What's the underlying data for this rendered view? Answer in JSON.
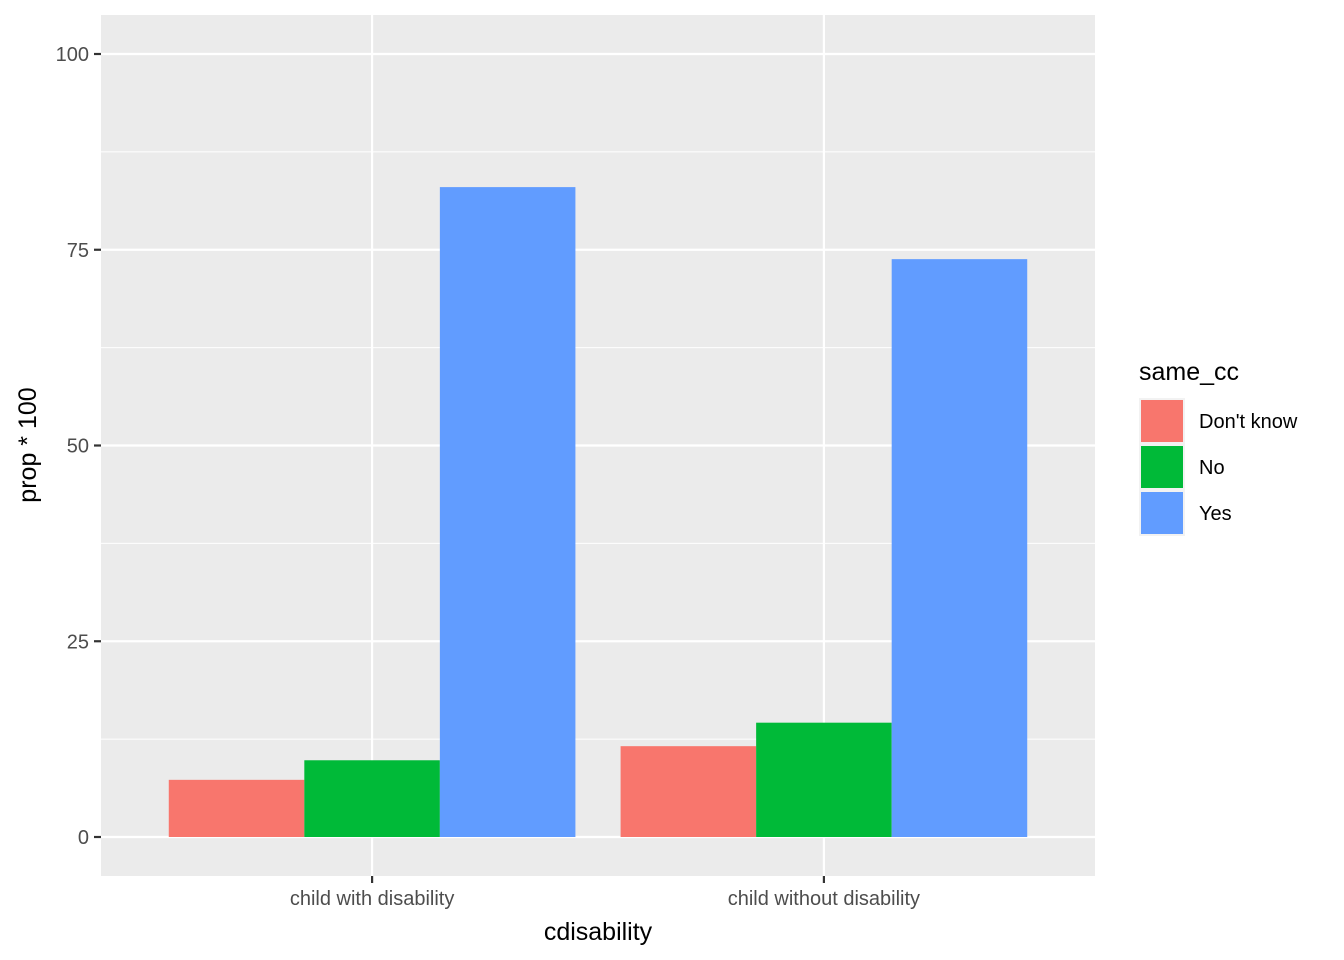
{
  "chart_data": {
    "type": "bar",
    "title": "",
    "xlabel": "cdisability",
    "ylabel": "prop * 100",
    "categories": [
      "child with disability",
      "child without disability"
    ],
    "series": [
      {
        "name": "Don't know",
        "color": "#F8766D",
        "values": [
          7.3,
          11.6
        ]
      },
      {
        "name": "No",
        "color": "#00BA38",
        "values": [
          9.8,
          14.6
        ]
      },
      {
        "name": "Yes",
        "color": "#619CFF",
        "values": [
          83.0,
          73.8
        ]
      }
    ],
    "ylim": [
      0,
      100
    ],
    "yticks": [
      0,
      25,
      50,
      75,
      100
    ],
    "ytick_labels": [
      "0",
      "25",
      "50",
      "75",
      "100"
    ],
    "grid": true,
    "legend": {
      "title": "same_cc",
      "placement": "right"
    }
  }
}
